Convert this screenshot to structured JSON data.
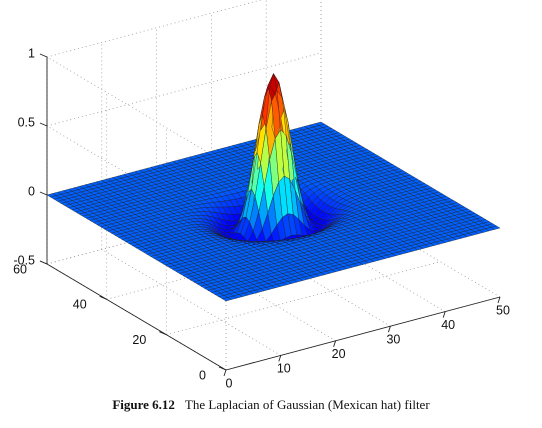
{
  "chart_data": {
    "type": "surface",
    "function": "Laplacian of Gaussian (Mexican hat), peak normalized to 1",
    "grid": {
      "x": [
        0,
        50
      ],
      "y": [
        0,
        60
      ],
      "resolution": 50
    },
    "xlim": [
      0,
      50
    ],
    "ylim": [
      0,
      60
    ],
    "zlim": [
      -0.5,
      1
    ],
    "x_ticks": [
      "0",
      "10",
      "20",
      "30",
      "40",
      "50"
    ],
    "y_ticks": [
      "0",
      "20",
      "40",
      "60"
    ],
    "z_ticks": [
      "-0.5",
      "0",
      "0.5",
      "1"
    ],
    "peak_value": 1,
    "trough_value": -0.28,
    "grid_lines": "dotted",
    "colormap": "jet"
  },
  "caption": {
    "label": "Figure 6.12",
    "text": "The Laplacian of Gaussian (Mexican hat) filter"
  }
}
